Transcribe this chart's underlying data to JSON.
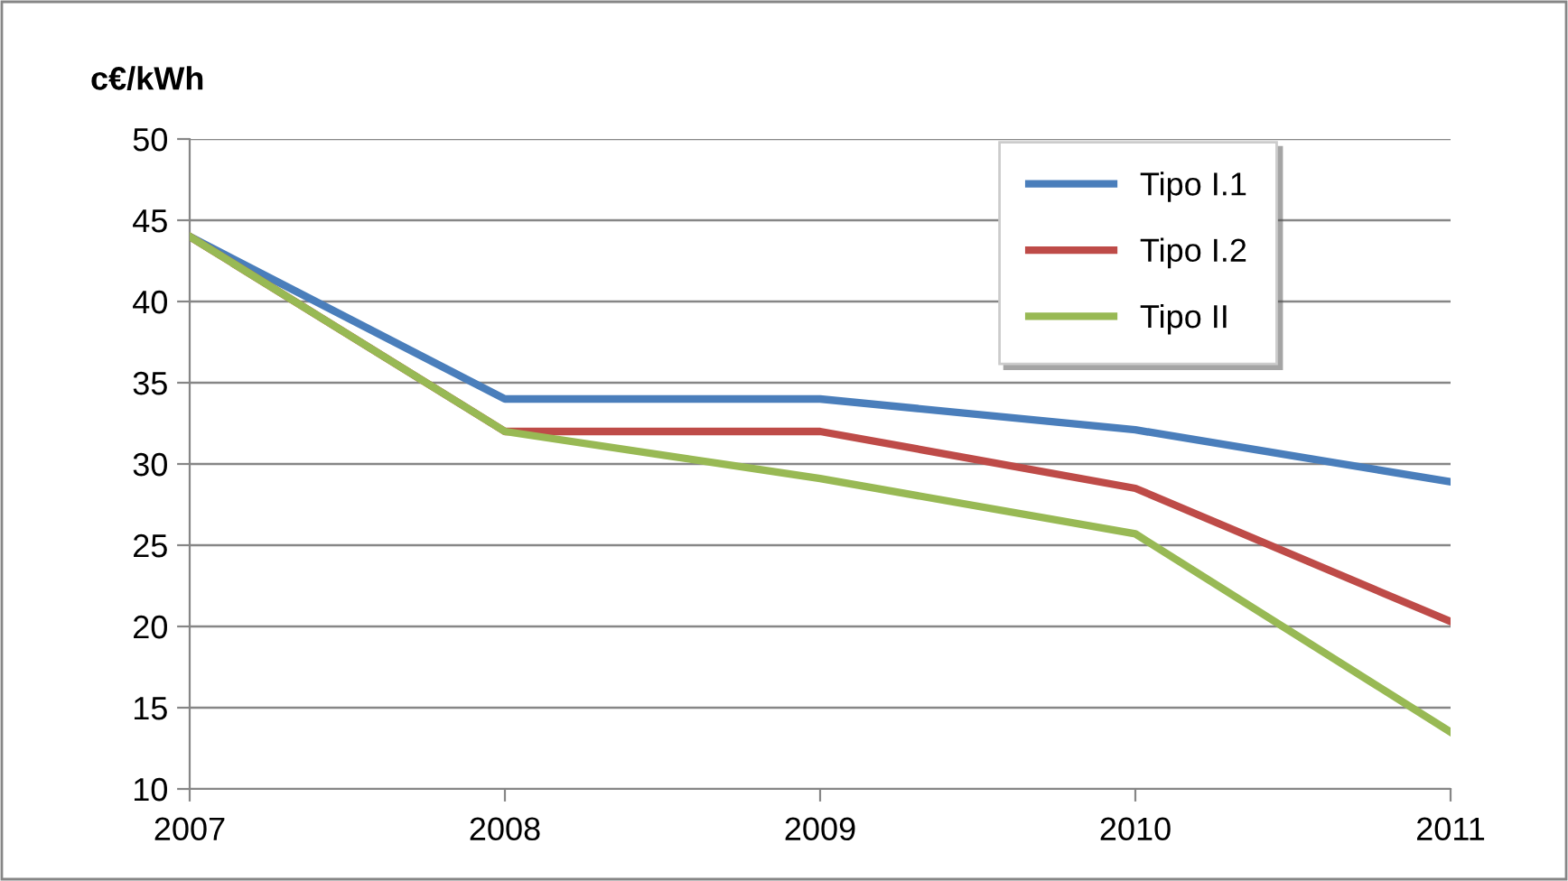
{
  "chart_data": {
    "type": "line",
    "ylabel": "c€/kWh",
    "x": [
      2007,
      2008,
      2009,
      2010,
      2011
    ],
    "series": [
      {
        "name": "Tipo I.1",
        "color": "#4a7ebb",
        "values": [
          44,
          34,
          34,
          32.1,
          28.9
        ]
      },
      {
        "name": "Tipo I.2",
        "color": "#be4b48",
        "values": [
          44,
          32,
          32,
          28.5,
          20.3
        ]
      },
      {
        "name": "Tipo II",
        "color": "#98b954",
        "values": [
          44,
          32,
          29.1,
          25.7,
          13.5
        ]
      }
    ],
    "xlim": [
      2007,
      2011
    ],
    "xticks": [
      2007,
      2008,
      2009,
      2010,
      2011
    ],
    "ylim": [
      10,
      50
    ],
    "yticks": [
      10,
      15,
      20,
      25,
      30,
      35,
      40,
      45,
      50
    ],
    "grid": "y",
    "legend": "top right",
    "marker": "none",
    "line_style": "solid"
  }
}
